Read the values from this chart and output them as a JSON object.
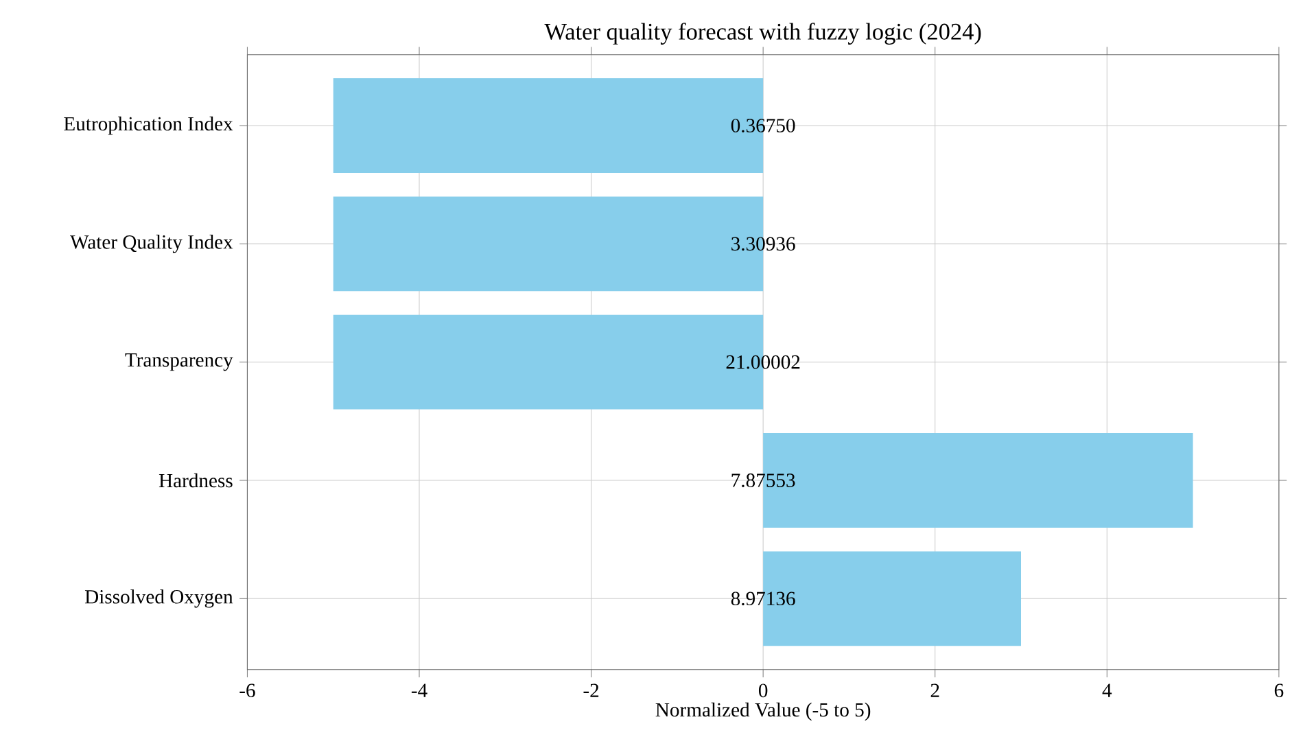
{
  "chart_data": {
    "type": "bar",
    "orientation": "horizontal",
    "title": "Water quality forecast with fuzzy logic (2024)",
    "xlabel": "Normalized Value (-5 to 5)",
    "categories": [
      "Eutrophication Index",
      "Water Quality Index",
      "Transparency",
      "Hardness",
      "Dissolved Oxygen"
    ],
    "values": [
      -5,
      -5,
      -5,
      5,
      3
    ],
    "color": "#87ceeb",
    "xlim": [
      -6,
      6
    ],
    "xticks": [
      -6,
      -4,
      -2,
      0,
      2,
      4,
      6
    ],
    "grid": true,
    "annotations": [
      {
        "text": "0.36750",
        "y": "Eutrophication Index"
      },
      {
        "text": "3.30936",
        "y": "Water Quality Index"
      },
      {
        "text": "21.00002",
        "y": "Transparency"
      },
      {
        "text": "7.87553",
        "y": "Hardness"
      },
      {
        "text": "8.97136",
        "y": "Dissolved Oxygen"
      }
    ]
  }
}
